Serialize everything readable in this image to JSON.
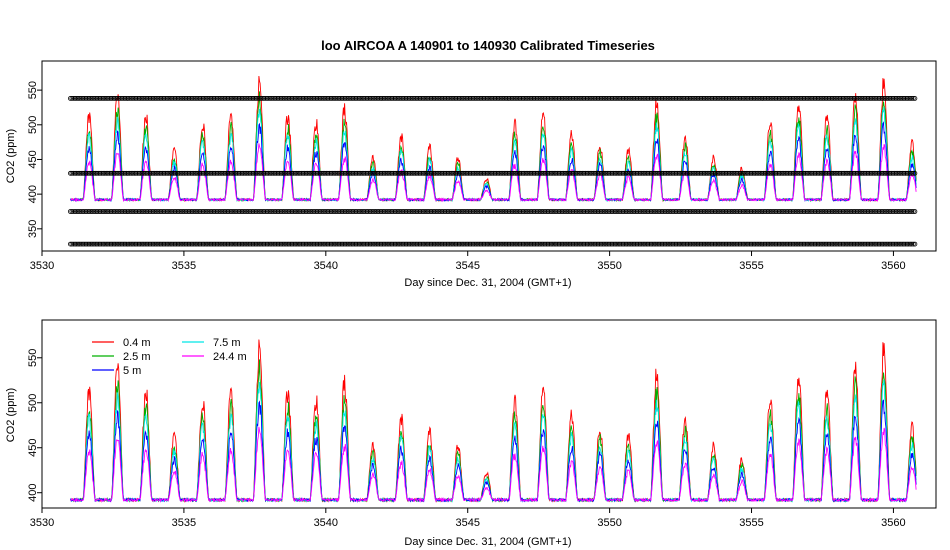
{
  "chart_data": [
    {
      "type": "line",
      "title": "loo   AIRCOA  A    140901  to  140930   Calibrated Timeseries",
      "xlabel": "Day since Dec. 31, 2004 (GMT+1)",
      "ylabel": "CO2 (ppm)",
      "xlim": [
        3530,
        3561.5
      ],
      "ylim": [
        318,
        592
      ],
      "xticks": [
        "3530",
        "3535",
        "3540",
        "3545",
        "3550",
        "3555",
        "3560"
      ],
      "yticks": [
        "350",
        "400",
        "450",
        "500",
        "550"
      ],
      "calibration_levels": [
        328,
        375,
        430,
        538
      ],
      "day_range": [
        3531,
        3560.8
      ],
      "series_colors": [
        "#ff0000",
        "#00b000",
        "#0000ff",
        "#00e8e8",
        "#ff00ff"
      ]
    },
    {
      "type": "line",
      "title": "",
      "xlabel": "Day since Dec. 31, 2004 (GMT+1)",
      "ylabel": "CO2 (ppm)",
      "xlim": [
        3530,
        3561.5
      ],
      "ylim": [
        383,
        592
      ],
      "xticks": [
        "3530",
        "3535",
        "3540",
        "3545",
        "3550",
        "3555",
        "3560"
      ],
      "yticks": [
        "400",
        "450",
        "500",
        "550"
      ],
      "legend": [
        {
          "name": "0.4 m",
          "color": "#ff0000"
        },
        {
          "name": "2.5 m",
          "color": "#00b000"
        },
        {
          "name": "5 m",
          "color": "#0000ff"
        },
        {
          "name": "7.5 m",
          "color": "#00e8e8"
        },
        {
          "name": "24.4 m",
          "color": "#ff00ff"
        }
      ],
      "legend_position": "top-left",
      "day_range": [
        3531,
        3560.8
      ]
    }
  ]
}
